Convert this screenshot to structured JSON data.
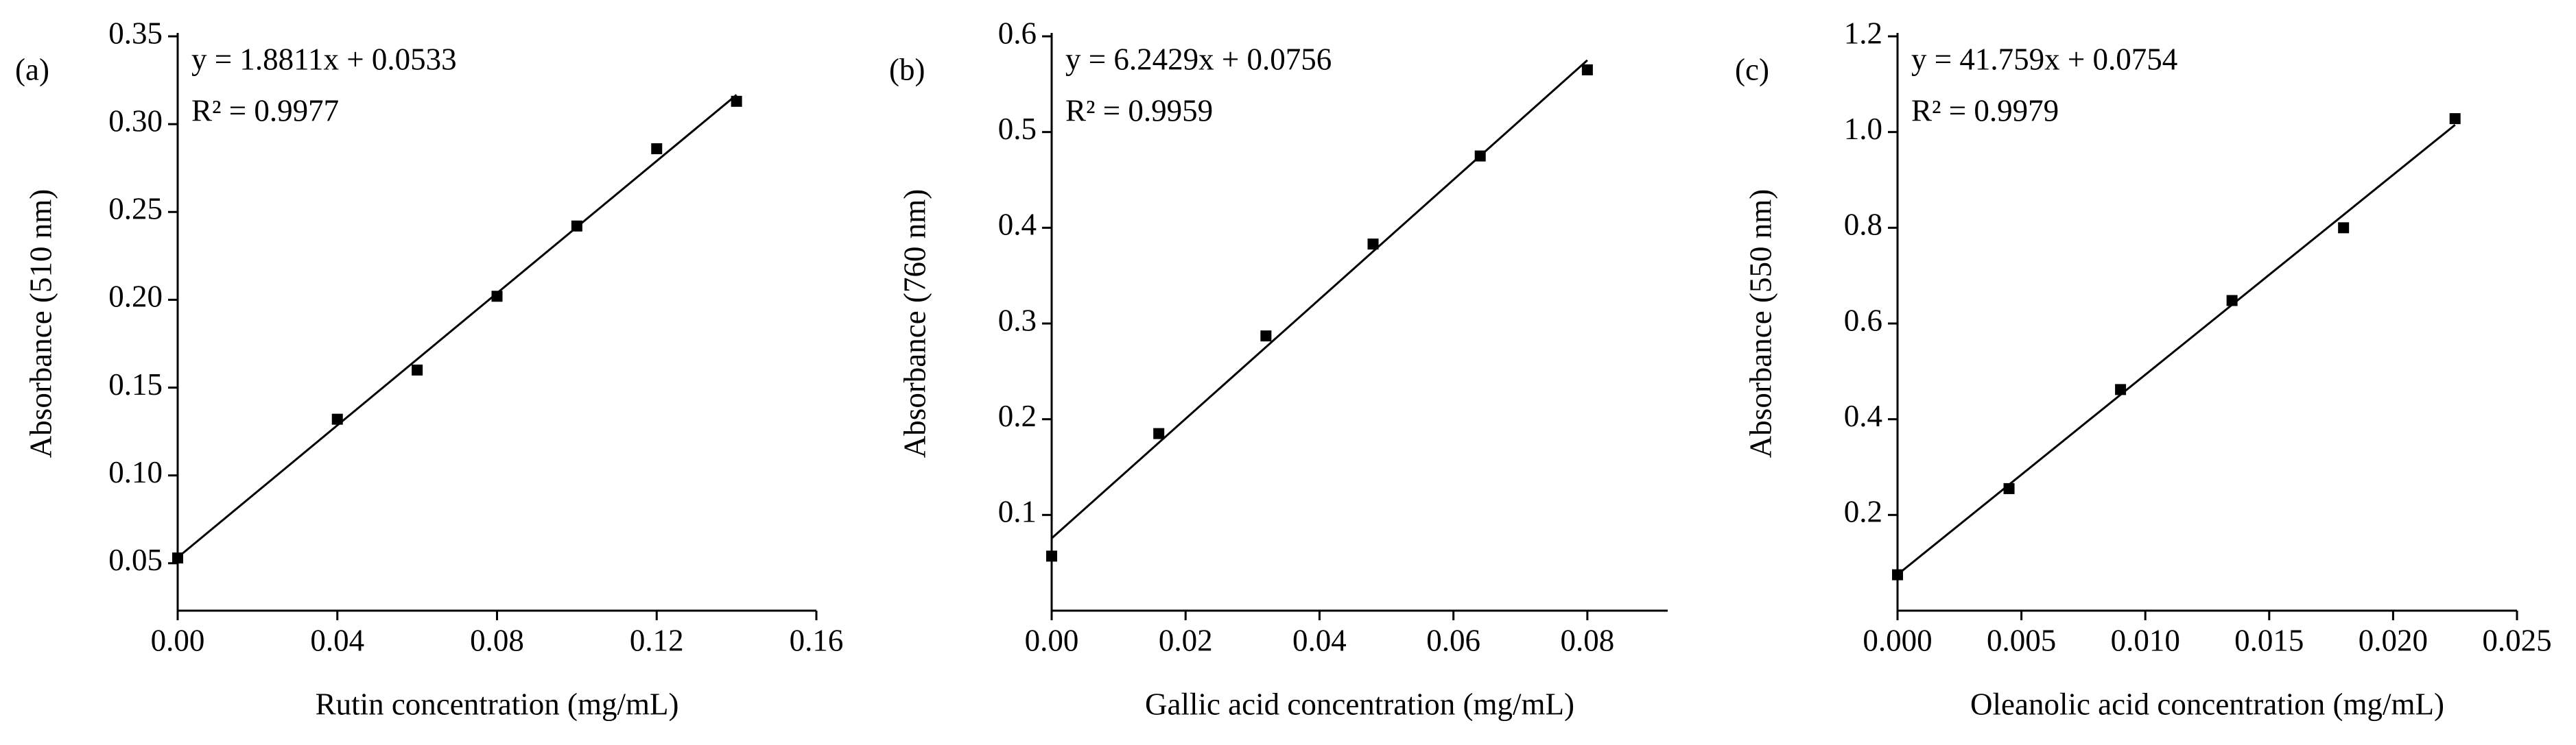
{
  "chart_data": [
    {
      "type": "scatter",
      "panel_label": "(a)",
      "equation": "y = 1.8811x + 0.0533",
      "r2_label": "R² = 0.9977",
      "x_label": "Rutin concentration (mg/mL)",
      "y_label": "Absorbance (510 nm)",
      "x": [
        0,
        0.04,
        0.06,
        0.08,
        0.1,
        0.12,
        0.14
      ],
      "values": [
        0.053,
        0.132,
        0.16,
        0.202,
        0.242,
        0.286,
        0.313
      ],
      "color": "#000000",
      "fit": {
        "slope": 1.8811,
        "intercept": 0.0533,
        "x_range": [
          0,
          0.14
        ]
      },
      "xlim": [
        0,
        0.16
      ],
      "ylim": [
        0.023,
        0.35
      ],
      "xticks": [
        {
          "value": 0,
          "label": "0.00"
        },
        0.04,
        0.08,
        0.12,
        0.16
      ],
      "yticks": [
        0.05,
        {
          "value": 0.1,
          "label": "0.10"
        },
        0.15,
        {
          "value": 0.2,
          "label": "0.20"
        },
        0.25,
        {
          "value": 0.3,
          "label": "0.30"
        },
        0.35
      ]
    },
    {
      "type": "scatter",
      "panel_label": "(b)",
      "equation": "y = 6.2429x + 0.0756",
      "r2_label": "R² = 0.9959",
      "x_label": "Gallic acid concentration (mg/mL)",
      "y_label": "Absorbance (760 nm)",
      "x": [
        0,
        0.016,
        0.032,
        0.048,
        0.064,
        0.08
      ],
      "values": [
        0.057,
        0.185,
        0.287,
        0.383,
        0.475,
        0.565
      ],
      "color": "#000000",
      "fit": {
        "slope": 6.2429,
        "intercept": 0.0756,
        "x_range": [
          0,
          0.08
        ]
      },
      "xlim": [
        0,
        0.092
      ],
      "ylim": [
        0,
        0.6
      ],
      "xticks": [
        {
          "value": 0,
          "label": "0.00"
        },
        0.02,
        0.04,
        0.06,
        0.08
      ],
      "yticks": [
        0.1,
        0.2,
        0.3,
        0.4,
        0.5,
        0.6
      ]
    },
    {
      "type": "scatter",
      "panel_label": "(c)",
      "equation": "y = 41.759x + 0.0754",
      "r2_label": "R² = 0.9979",
      "x_label": "Oleanolic acid concentration (mg/mL)",
      "y_label": "Absorbance (550 nm)",
      "x": [
        0,
        0.0045,
        0.009,
        0.0135,
        0.018,
        0.0225
      ],
      "values": [
        0.075,
        0.255,
        0.462,
        0.648,
        0.8,
        1.028
      ],
      "color": "#000000",
      "fit": {
        "slope": 41.759,
        "intercept": 0.0754,
        "x_range": [
          0,
          0.0225
        ]
      },
      "xlim": [
        0,
        0.025
      ],
      "ylim": [
        0,
        1.2
      ],
      "xticks": [
        {
          "value": 0,
          "label": "0.000"
        },
        0.005,
        {
          "value": 0.01,
          "label": "0.010"
        },
        0.015,
        {
          "value": 0.02,
          "label": "0.020"
        },
        0.025
      ],
      "yticks": [
        0.2,
        0.4,
        0.6,
        0.8,
        {
          "value": 1,
          "label": "1.0"
        },
        1.2
      ]
    }
  ]
}
